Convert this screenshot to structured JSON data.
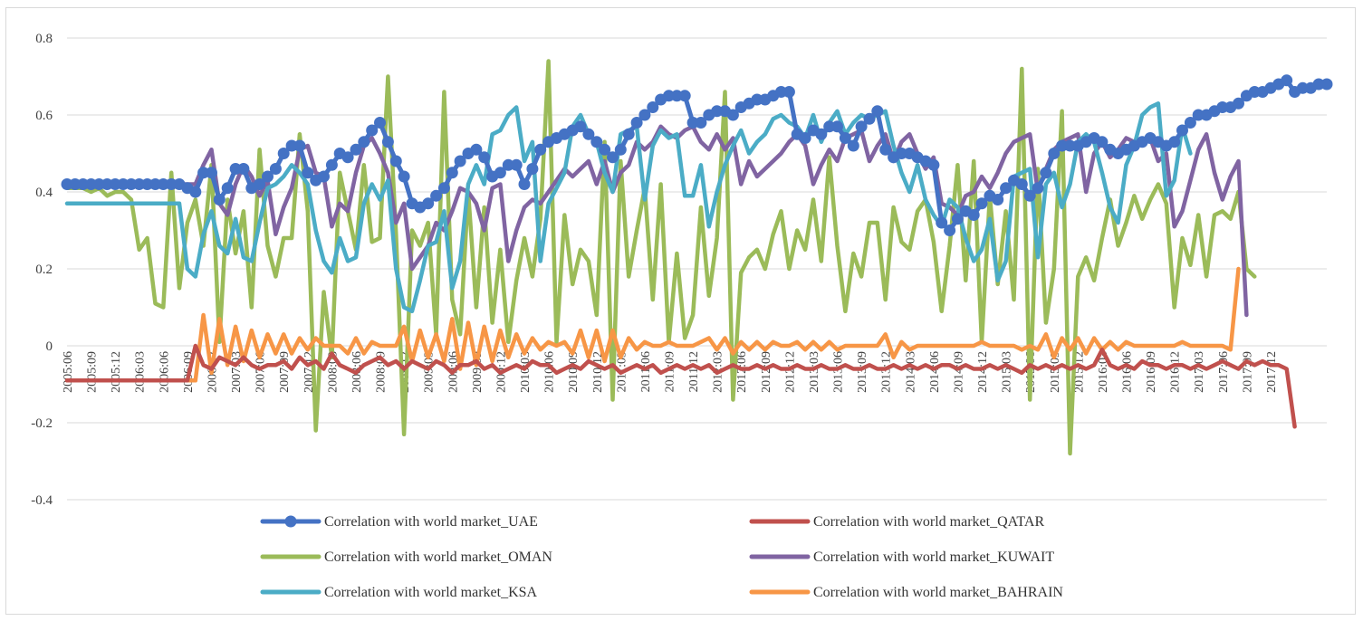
{
  "chart_data": {
    "type": "line",
    "title": "",
    "xlabel": "",
    "ylabel": "",
    "ylim": [
      -0.4,
      0.8
    ],
    "y_ticks": [
      "0.8",
      "0.6",
      "0.4",
      "0.2",
      "0",
      "-0.2",
      "-0.4"
    ],
    "grid": "horizontal",
    "legend_position": "bottom",
    "x_tick_labels": [
      "2005:06",
      "2005:09",
      "2005:12",
      "2006:03",
      "2006:06",
      "2006:09",
      "2006:12",
      "2007:03",
      "2007:06",
      "2007:09",
      "2007:12",
      "2008:03",
      "2008:06",
      "2008:09",
      "2008:12",
      "2009:03",
      "2009:06",
      "2009:09",
      "2009:12",
      "2010:03",
      "2010:06",
      "2010:09",
      "2010:12",
      "2011:03",
      "2011:06",
      "2011:09",
      "2011:12",
      "2012:03",
      "2012:06",
      "2012:09",
      "2012:12",
      "2013:03",
      "2013:06",
      "2013:09",
      "2013:12",
      "2014:03",
      "2014:06",
      "2014:09",
      "2014:12",
      "2015:03",
      "2015:06",
      "2015:09",
      "2015:12",
      "2016:03",
      "2016:06",
      "2016:09",
      "2016:12",
      "2017:03",
      "2017:06",
      "2017:09",
      "2017:12"
    ],
    "series": [
      {
        "name": "Correlation with world market_UAE",
        "color": "#4472c4",
        "markers": true,
        "values": [
          0.42,
          0.42,
          0.42,
          0.42,
          0.42,
          0.42,
          0.42,
          0.42,
          0.42,
          0.42,
          0.42,
          0.42,
          0.42,
          0.42,
          0.42,
          0.41,
          0.4,
          0.45,
          0.45,
          0.38,
          0.41,
          0.46,
          0.46,
          0.41,
          0.42,
          0.44,
          0.46,
          0.5,
          0.52,
          0.52,
          0.45,
          0.43,
          0.44,
          0.47,
          0.5,
          0.49,
          0.51,
          0.53,
          0.56,
          0.58,
          0.53,
          0.48,
          0.44,
          0.37,
          0.36,
          0.37,
          0.39,
          0.41,
          0.45,
          0.48,
          0.5,
          0.51,
          0.49,
          0.44,
          0.45,
          0.47,
          0.47,
          0.42,
          0.46,
          0.51,
          0.53,
          0.54,
          0.55,
          0.56,
          0.57,
          0.55,
          0.53,
          0.51,
          0.49,
          0.51,
          0.55,
          0.58,
          0.6,
          0.62,
          0.64,
          0.65,
          0.65,
          0.65,
          0.58,
          0.58,
          0.6,
          0.61,
          0.61,
          0.6,
          0.62,
          0.63,
          0.64,
          0.64,
          0.65,
          0.66,
          0.66,
          0.55,
          0.54,
          0.56,
          0.55,
          0.57,
          0.57,
          0.54,
          0.52,
          0.57,
          0.59,
          0.61,
          0.51,
          0.49,
          0.5,
          0.5,
          0.49,
          0.48,
          0.47,
          0.32,
          0.3,
          0.33,
          0.35,
          0.34,
          0.37,
          0.39,
          0.38,
          0.41,
          0.43,
          0.42,
          0.39,
          0.41,
          0.45,
          0.5,
          0.52,
          0.52,
          0.52,
          0.53,
          0.54,
          0.53,
          0.51,
          0.5,
          0.51,
          0.52,
          0.53,
          0.54,
          0.53,
          0.52,
          0.53,
          0.56,
          0.58,
          0.6,
          0.6,
          0.61,
          0.62,
          0.62,
          0.63,
          0.65,
          0.66,
          0.66,
          0.67,
          0.68,
          0.69,
          0.66,
          0.67,
          0.67,
          0.68,
          0.68
        ]
      },
      {
        "name": "Correlation with world market_QATAR",
        "color": "#c0504d",
        "markers": false,
        "values": [
          -0.09,
          -0.09,
          -0.09,
          -0.09,
          -0.09,
          -0.09,
          -0.09,
          -0.09,
          -0.09,
          -0.09,
          -0.09,
          -0.09,
          -0.09,
          -0.09,
          -0.09,
          -0.09,
          0.0,
          -0.05,
          -0.06,
          -0.03,
          -0.04,
          -0.05,
          -0.03,
          -0.05,
          -0.06,
          -0.05,
          -0.05,
          -0.04,
          -0.06,
          -0.03,
          -0.05,
          -0.04,
          -0.06,
          -0.02,
          -0.05,
          -0.06,
          -0.07,
          -0.05,
          -0.04,
          -0.03,
          -0.05,
          -0.04,
          -0.06,
          -0.04,
          -0.05,
          -0.06,
          -0.04,
          -0.05,
          -0.07,
          -0.05,
          -0.05,
          -0.04,
          -0.06,
          -0.05,
          -0.07,
          -0.06,
          -0.05,
          -0.06,
          -0.04,
          -0.05,
          -0.05,
          -0.07,
          -0.06,
          -0.05,
          -0.06,
          -0.04,
          -0.05,
          -0.06,
          -0.05,
          -0.07,
          -0.06,
          -0.05,
          -0.06,
          -0.05,
          -0.07,
          -0.06,
          -0.05,
          -0.06,
          -0.05,
          -0.06,
          -0.05,
          -0.07,
          -0.06,
          -0.05,
          -0.06,
          -0.06,
          -0.05,
          -0.06,
          -0.05,
          -0.06,
          -0.06,
          -0.05,
          -0.06,
          -0.06,
          -0.05,
          -0.06,
          -0.06,
          -0.05,
          -0.06,
          -0.06,
          -0.05,
          -0.06,
          -0.06,
          -0.05,
          -0.06,
          -0.05,
          -0.06,
          -0.05,
          -0.06,
          -0.05,
          -0.05,
          -0.06,
          -0.05,
          -0.06,
          -0.06,
          -0.05,
          -0.06,
          -0.05,
          -0.06,
          -0.07,
          -0.05,
          -0.06,
          -0.05,
          -0.06,
          -0.05,
          -0.06,
          -0.05,
          -0.06,
          -0.05,
          -0.01,
          -0.05,
          -0.06,
          -0.05,
          -0.06,
          -0.04,
          -0.05,
          -0.05,
          -0.06,
          -0.05,
          -0.05,
          -0.06,
          -0.05,
          -0.06,
          -0.05,
          -0.04,
          -0.05,
          -0.06,
          -0.04,
          -0.05,
          -0.04,
          -0.05,
          -0.05,
          -0.06,
          -0.21
        ]
      },
      {
        "name": "Correlation with world market_OMAN",
        "color": "#9bbb59",
        "markers": false,
        "values": [
          0.41,
          0.41,
          0.41,
          0.4,
          0.41,
          0.39,
          0.4,
          0.4,
          0.38,
          0.25,
          0.28,
          0.11,
          0.1,
          0.45,
          0.15,
          0.32,
          0.38,
          0.26,
          0.47,
          0.01,
          0.38,
          0.24,
          0.35,
          0.1,
          0.51,
          0.26,
          0.18,
          0.28,
          0.28,
          0.55,
          0.35,
          -0.22,
          0.14,
          -0.03,
          0.45,
          0.35,
          0.25,
          0.47,
          0.27,
          0.28,
          0.7,
          0.29,
          -0.23,
          0.3,
          0.26,
          0.32,
          0.03,
          0.66,
          0.12,
          0.03,
          0.4,
          0.1,
          0.36,
          0.06,
          0.25,
          0.01,
          0.17,
          0.28,
          0.18,
          0.33,
          0.74,
          0.01,
          0.34,
          0.16,
          0.25,
          0.22,
          0.08,
          0.53,
          -0.14,
          0.48,
          0.18,
          0.3,
          0.41,
          0.12,
          0.42,
          0.01,
          0.24,
          0.02,
          0.08,
          0.36,
          0.13,
          0.28,
          0.66,
          -0.14,
          0.19,
          0.23,
          0.25,
          0.2,
          0.29,
          0.35,
          0.2,
          0.3,
          0.25,
          0.38,
          0.22,
          0.49,
          0.26,
          0.09,
          0.24,
          0.18,
          0.32,
          0.32,
          0.12,
          0.36,
          0.27,
          0.25,
          0.35,
          0.38,
          0.27,
          0.09,
          0.26,
          0.47,
          0.17,
          0.48,
          0.01,
          0.39,
          0.16,
          0.35,
          0.12,
          0.72,
          -0.14,
          0.46,
          0.06,
          0.2,
          0.61,
          -0.28,
          0.18,
          0.23,
          0.17,
          0.28,
          0.38,
          0.26,
          0.32,
          0.39,
          0.33,
          0.38,
          0.42,
          0.37,
          0.1,
          0.28,
          0.21,
          0.34,
          0.18,
          0.34,
          0.35,
          0.33,
          0.4,
          0.2,
          0.18
        ]
      },
      {
        "name": "Correlation with world market_KUWAIT",
        "color": "#8064a2",
        "markers": false,
        "values": [
          0.42,
          0.42,
          0.42,
          0.42,
          0.42,
          0.42,
          0.42,
          0.42,
          0.42,
          0.42,
          0.42,
          0.42,
          0.42,
          0.42,
          0.42,
          0.42,
          0.42,
          0.47,
          0.51,
          0.37,
          0.34,
          0.42,
          0.47,
          0.44,
          0.39,
          0.43,
          0.29,
          0.36,
          0.41,
          0.51,
          0.52,
          0.45,
          0.44,
          0.31,
          0.37,
          0.35,
          0.45,
          0.52,
          0.54,
          0.5,
          0.45,
          0.32,
          0.37,
          0.2,
          0.23,
          0.26,
          0.32,
          0.3,
          0.35,
          0.41,
          0.4,
          0.37,
          0.3,
          0.41,
          0.42,
          0.22,
          0.3,
          0.36,
          0.38,
          0.37,
          0.4,
          0.43,
          0.46,
          0.44,
          0.46,
          0.48,
          0.42,
          0.48,
          0.4,
          0.45,
          0.47,
          0.53,
          0.51,
          0.53,
          0.57,
          0.55,
          0.54,
          0.56,
          0.57,
          0.53,
          0.51,
          0.55,
          0.51,
          0.54,
          0.42,
          0.48,
          0.44,
          0.46,
          0.48,
          0.5,
          0.53,
          0.55,
          0.52,
          0.42,
          0.47,
          0.51,
          0.48,
          0.54,
          0.55,
          0.56,
          0.48,
          0.52,
          0.55,
          0.48,
          0.53,
          0.55,
          0.5,
          0.46,
          0.49,
          0.37,
          0.36,
          0.34,
          0.39,
          0.4,
          0.44,
          0.41,
          0.45,
          0.5,
          0.53,
          0.54,
          0.55,
          0.4,
          0.46,
          0.51,
          0.53,
          0.54,
          0.55,
          0.4,
          0.5,
          0.53,
          0.49,
          0.51,
          0.54,
          0.53,
          0.53,
          0.54,
          0.48,
          0.5,
          0.31,
          0.35,
          0.43,
          0.51,
          0.55,
          0.45,
          0.38,
          0.44,
          0.48,
          0.08
        ]
      },
      {
        "name": "Correlation with world market_KSA",
        "color": "#4bacc6",
        "markers": false,
        "values": [
          0.37,
          0.37,
          0.37,
          0.37,
          0.37,
          0.37,
          0.37,
          0.37,
          0.37,
          0.37,
          0.37,
          0.37,
          0.37,
          0.37,
          0.37,
          0.2,
          0.18,
          0.29,
          0.35,
          0.26,
          0.24,
          0.33,
          0.23,
          0.22,
          0.32,
          0.41,
          0.42,
          0.44,
          0.47,
          0.45,
          0.42,
          0.3,
          0.22,
          0.19,
          0.28,
          0.22,
          0.23,
          0.37,
          0.42,
          0.38,
          0.43,
          0.2,
          0.1,
          0.09,
          0.17,
          0.26,
          0.27,
          0.35,
          0.15,
          0.22,
          0.42,
          0.47,
          0.42,
          0.55,
          0.56,
          0.6,
          0.62,
          0.48,
          0.53,
          0.22,
          0.37,
          0.41,
          0.45,
          0.57,
          0.6,
          0.55,
          0.53,
          0.45,
          0.4,
          0.55,
          0.56,
          0.57,
          0.38,
          0.52,
          0.56,
          0.54,
          0.55,
          0.39,
          0.39,
          0.47,
          0.31,
          0.4,
          0.47,
          0.52,
          0.56,
          0.5,
          0.53,
          0.55,
          0.59,
          0.6,
          0.58,
          0.57,
          0.54,
          0.6,
          0.53,
          0.58,
          0.61,
          0.55,
          0.58,
          0.6,
          0.59,
          0.6,
          0.61,
          0.52,
          0.45,
          0.4,
          0.47,
          0.38,
          0.34,
          0.31,
          0.38,
          0.36,
          0.28,
          0.22,
          0.25,
          0.33,
          0.17,
          0.22,
          0.44,
          0.45,
          0.46,
          0.23,
          0.42,
          0.45,
          0.36,
          0.42,
          0.53,
          0.55,
          0.53,
          0.45,
          0.36,
          0.32,
          0.47,
          0.52,
          0.6,
          0.62,
          0.63,
          0.39,
          0.43,
          0.57,
          0.5
        ]
      },
      {
        "name": "Correlation with world market_BAHRAIN",
        "color": "#f79646",
        "markers": false,
        "values": [
          -0.09,
          -0.09,
          -0.09,
          -0.09,
          -0.09,
          -0.09,
          -0.09,
          -0.09,
          -0.09,
          -0.09,
          -0.09,
          -0.09,
          -0.09,
          -0.09,
          -0.09,
          -0.09,
          -0.09,
          0.08,
          -0.07,
          0.07,
          -0.05,
          0.05,
          -0.04,
          0.04,
          -0.03,
          0.03,
          -0.02,
          0.03,
          -0.02,
          0.02,
          -0.01,
          0.02,
          0.0,
          0.0,
          0.0,
          -0.02,
          0.02,
          -0.02,
          0.01,
          0.0,
          0.0,
          0.0,
          0.05,
          -0.04,
          0.04,
          -0.03,
          0.03,
          -0.04,
          0.07,
          -0.06,
          0.06,
          -0.05,
          0.05,
          -0.04,
          0.04,
          -0.03,
          0.03,
          -0.02,
          0.02,
          -0.01,
          0.01,
          0.0,
          0.01,
          -0.02,
          0.04,
          -0.03,
          0.04,
          -0.04,
          0.04,
          -0.03,
          0.02,
          -0.01,
          0.01,
          0.0,
          0.0,
          0.01,
          0.0,
          0.0,
          0.0,
          0.01,
          0.02,
          -0.01,
          0.02,
          -0.02,
          0.01,
          -0.01,
          0.01,
          -0.01,
          0.01,
          0.0,
          0.0,
          0.01,
          -0.01,
          0.01,
          -0.01,
          0.01,
          -0.01,
          0.0,
          0.0,
          0.0,
          0.0,
          0.0,
          0.03,
          -0.03,
          0.01,
          -0.01,
          0.0,
          0.0,
          0.0,
          0.0,
          0.0,
          0.0,
          0.0,
          0.0,
          0.01,
          0.0,
          0.0,
          0.0,
          0.0,
          -0.01,
          0.0,
          -0.01,
          0.03,
          -0.03,
          0.02,
          -0.01,
          0.02,
          -0.02,
          0.02,
          -0.01,
          0.01,
          -0.01,
          0.01,
          0.0,
          0.0,
          0.0,
          0.0,
          0.0,
          0.0,
          0.01,
          0.0,
          0.0,
          0.0,
          0.0,
          0.0,
          -0.01,
          0.2
        ]
      }
    ]
  }
}
